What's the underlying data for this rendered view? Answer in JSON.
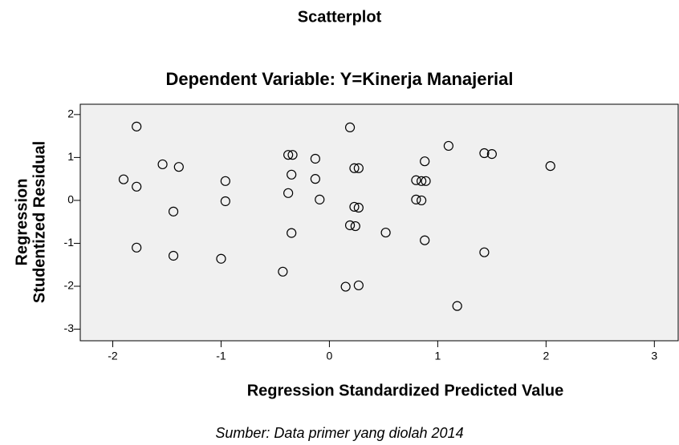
{
  "chart_data": {
    "type": "scatter",
    "title": "Scatterplot",
    "subtitle": "Dependent Variable: Y=Kinerja Manajerial",
    "x_label": "Regression Standardized Predicted Value",
    "y_label": [
      "Regression",
      "Studentized Residual"
    ],
    "caption": "Sumber: Data primer yang diolah 2014",
    "x": [
      -1.78,
      -1.54,
      -1.39,
      -1.9,
      -1.78,
      -1.44,
      -1.78,
      -1.44,
      -1.0,
      -0.96,
      -0.96,
      -0.38,
      -0.34,
      -0.13,
      -0.35,
      -0.13,
      -0.38,
      -0.09,
      -0.35,
      -0.43,
      0.19,
      0.23,
      0.27,
      0.23,
      0.27,
      0.19,
      0.24,
      0.52,
      0.15,
      0.27,
      1.1,
      0.88,
      0.8,
      0.85,
      0.89,
      0.8,
      0.85,
      0.88,
      1.18,
      1.43,
      1.5,
      1.43,
      2.04
    ],
    "y": [
      1.72,
      0.84,
      0.78,
      0.49,
      0.32,
      -0.26,
      -1.1,
      -1.29,
      -1.36,
      0.45,
      -0.02,
      1.06,
      1.06,
      0.97,
      0.6,
      0.5,
      0.17,
      0.02,
      -0.76,
      -1.66,
      1.7,
      0.75,
      0.75,
      -0.15,
      -0.17,
      -0.58,
      -0.6,
      -0.75,
      -2.01,
      -1.98,
      1.27,
      0.91,
      0.47,
      0.45,
      0.45,
      0.02,
      0.0,
      -0.93,
      -2.46,
      1.1,
      1.08,
      -1.21,
      0.8
    ],
    "color": "#000000",
    "background": "#f0f0f0",
    "xlim": [
      -2.3,
      3.22
    ],
    "xticks": [
      -2,
      -1,
      0,
      1,
      2,
      3
    ],
    "ylim": [
      -3.27,
      2.24
    ],
    "yticks": [
      -3,
      -2,
      -1,
      0,
      1,
      2
    ]
  }
}
